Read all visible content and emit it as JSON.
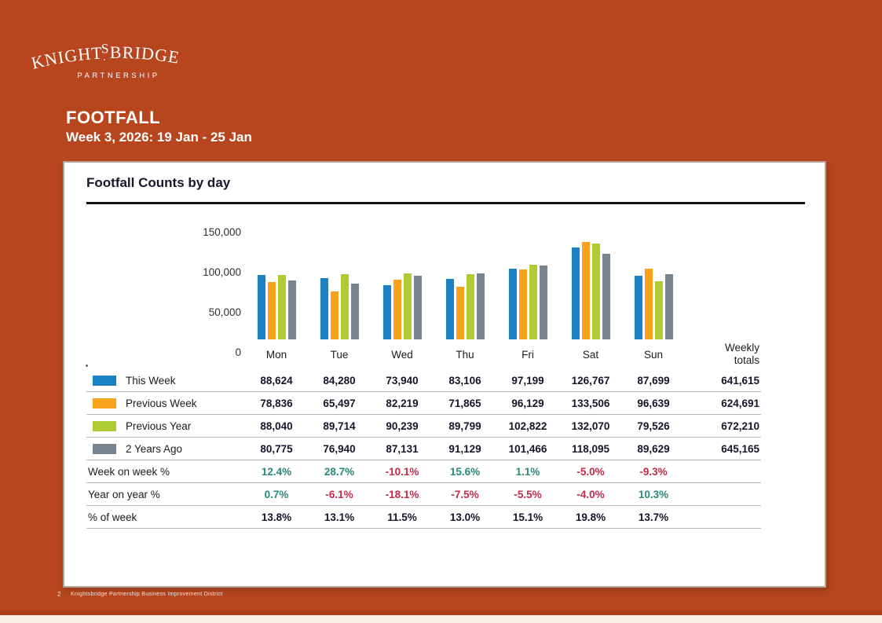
{
  "brand": {
    "logo_text": "KNIGHTSBRIDGE",
    "logo_subtext": "PARTNERSHIP"
  },
  "header": {
    "title": "FOOTFALL",
    "subtitle": "Week 3, 2026: 19 Jan - 25 Jan"
  },
  "card": {
    "title": "Footfall Counts by day"
  },
  "chart_data": {
    "type": "bar",
    "title": "Footfall Counts by day",
    "categories": [
      "Mon",
      "Tue",
      "Wed",
      "Thu",
      "Fri",
      "Sat",
      "Sun"
    ],
    "series": [
      {
        "name": "This Week",
        "color": "#1A82C4",
        "values": [
          88624,
          84280,
          73940,
          83106,
          97199,
          126767,
          87699
        ],
        "total": 641615
      },
      {
        "name": "Previous Week",
        "color": "#F9A11B",
        "values": [
          78836,
          65497,
          82219,
          71865,
          96129,
          133506,
          96639
        ],
        "total": 624691
      },
      {
        "name": "Previous Year",
        "color": "#AFCB34",
        "values": [
          88040,
          89714,
          90239,
          89799,
          102822,
          132070,
          79526
        ],
        "total": 672210
      },
      {
        "name": "2 Years Ago",
        "color": "#76858F",
        "values": [
          80775,
          76940,
          87131,
          91129,
          101466,
          118095,
          89629
        ],
        "total": 645165
      }
    ],
    "xlabel": "",
    "ylabel": "",
    "ylim": [
      0,
      150000
    ],
    "yticks": [
      {
        "value": 150000,
        "label": "150,000"
      },
      {
        "value": 100000,
        "label": "100,000"
      },
      {
        "value": 50000,
        "label": "50,000"
      },
      {
        "value": 0,
        "label": "0"
      }
    ],
    "grid": false,
    "legend_position": "table-left-column"
  },
  "table": {
    "totals_header": [
      "Weekly",
      "totals"
    ],
    "percent_rows": [
      {
        "label": "Week on week %",
        "values": [
          "12.4%",
          "28.7%",
          "-10.1%",
          "15.6%",
          "1.1%",
          "-5.0%",
          "-9.3%"
        ],
        "signed": true
      },
      {
        "label": "Year on year %",
        "values": [
          "0.7%",
          "-6.1%",
          "-18.1%",
          "-7.5%",
          "-5.5%",
          "-4.0%",
          "10.3%"
        ],
        "signed": true
      },
      {
        "label": "% of week",
        "values": [
          "13.8%",
          "13.1%",
          "11.5%",
          "13.0%",
          "15.1%",
          "19.8%",
          "13.7%"
        ],
        "signed": false
      }
    ],
    "colors": {
      "positive": "#2A8A78",
      "negative": "#C22A4C",
      "neutral": "#15152b"
    }
  },
  "footer": {
    "page_number": "2",
    "text": "Knightsbridge Partnership Business Improvement District"
  },
  "colors": {
    "background": "#B7461F",
    "card_border": "#AEA396",
    "bottom_strip": "#FAF1E3"
  }
}
